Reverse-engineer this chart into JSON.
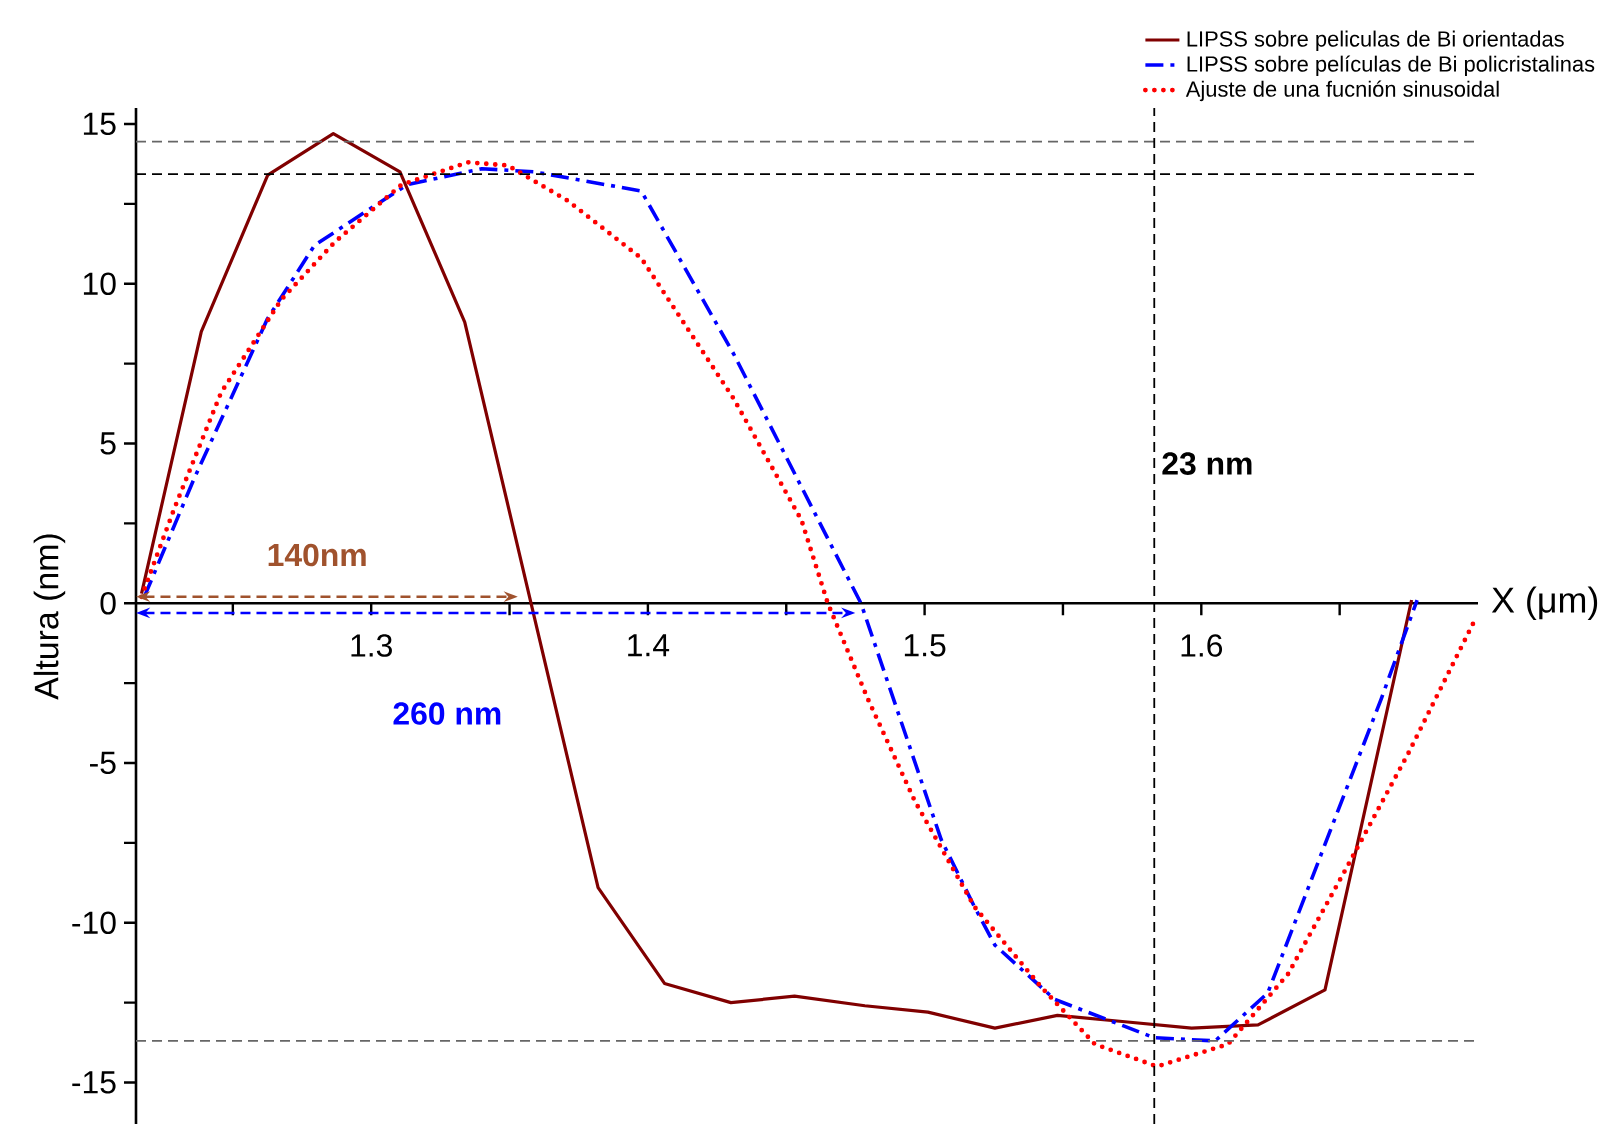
{
  "chart_data": {
    "type": "line",
    "xlabel": "X (μm)",
    "ylabel": "Altura (nm)",
    "xlim": [
      1.215,
      1.7
    ],
    "ylim": [
      -16.3,
      15.5
    ],
    "xticks": [
      {
        "value": 1.25,
        "label": null
      },
      1.3,
      {
        "value": 1.35,
        "label": null
      },
      1.4,
      {
        "value": 1.45,
        "label": null
      },
      1.5,
      {
        "value": 1.55,
        "label": null
      },
      1.6,
      {
        "value": 1.65,
        "label": null
      }
    ],
    "yticks": [
      -15,
      {
        "value": -12.5,
        "label": null
      },
      -10,
      {
        "value": -7.5,
        "label": null
      },
      -5,
      {
        "value": -2.5,
        "label": null
      },
      0,
      {
        "value": 2.5,
        "label": null
      },
      5,
      {
        "value": 7.5,
        "label": null
      },
      10,
      {
        "value": 12.5,
        "label": null
      },
      15
    ],
    "legend": "top right",
    "marker": "none",
    "series": [
      {
        "name": "LIPSS sobre peliculas de Bi orientadas",
        "color": "#800000",
        "line_style": "solid",
        "x": [
          1.217,
          1.2386,
          1.2626,
          1.2863,
          1.3104,
          1.3338,
          1.382,
          1.406,
          1.43,
          1.453,
          1.4784,
          1.5012,
          1.5254,
          1.548,
          1.5724,
          1.5965,
          1.6205,
          1.6447,
          1.676
        ],
        "values": [
          0.3,
          8.5,
          13.4,
          14.7,
          13.5,
          8.8,
          -8.9,
          -11.9,
          -12.5,
          -12.3,
          -12.6,
          -12.8,
          -13.3,
          -12.9,
          -13.1,
          -13.3,
          -13.2,
          -12.1,
          0.1
        ]
      },
      {
        "name": "LIPSS sobre películas de Bi policristalinas",
        "color": "#0000ff",
        "line_style": "dashdot",
        "x": [
          1.218,
          1.236,
          1.2625,
          1.2795,
          1.2988,
          1.313,
          1.34,
          1.359,
          1.3976,
          1.431,
          1.4675,
          1.477,
          1.506,
          1.518,
          1.5254,
          1.547,
          1.583,
          1.605,
          1.624,
          1.6507,
          1.665,
          1.678
        ],
        "values": [
          0.2,
          3.9,
          8.9,
          11.2,
          12.3,
          13.1,
          13.6,
          13.5,
          12.9,
          7.8,
          1.6,
          0,
          -7.4,
          -9.5,
          -10.7,
          -12.4,
          -13.6,
          -13.7,
          -12.2,
          -6.2,
          -3.0,
          0.1
        ]
      },
      {
        "name": "Ajuste de una fucnión sinusoidal",
        "color": "#ff0000",
        "line_style": "dotted",
        "x": [
          1.217,
          1.229,
          1.2458,
          1.2675,
          1.2868,
          1.311,
          1.335,
          1.3494,
          1.371,
          1.3976,
          1.431,
          1.4555,
          1.465,
          1.4795,
          1.4965,
          1.518,
          1.542,
          1.5615,
          1.584,
          1.6097,
          1.6314,
          1.653,
          1.6748,
          1.699
        ],
        "values": [
          0.2,
          3.0,
          6.6,
          9.5,
          11.3,
          13.1,
          13.8,
          13.7,
          12.6,
          10.8,
          6.4,
          2.6,
          0,
          -3.0,
          -6.2,
          -9.5,
          -12.0,
          -13.8,
          -14.5,
          -13.8,
          -11.6,
          -8.2,
          -4.7,
          -0.5
        ]
      }
    ],
    "ref_lines": [
      {
        "axis": "y",
        "value": 14.45,
        "color": "#666666",
        "line_style": "dashed"
      },
      {
        "axis": "y",
        "value": 13.43,
        "color": "#000000",
        "line_style": "dashed"
      },
      {
        "axis": "y",
        "value": -13.7,
        "color": "#666666",
        "line_style": "dashed"
      },
      {
        "axis": "x",
        "value": 1.583,
        "label": "23 nm",
        "color": "#000000",
        "line_style": "dashed"
      }
    ],
    "annotations": [
      "140nm",
      "260 nm"
    ]
  }
}
